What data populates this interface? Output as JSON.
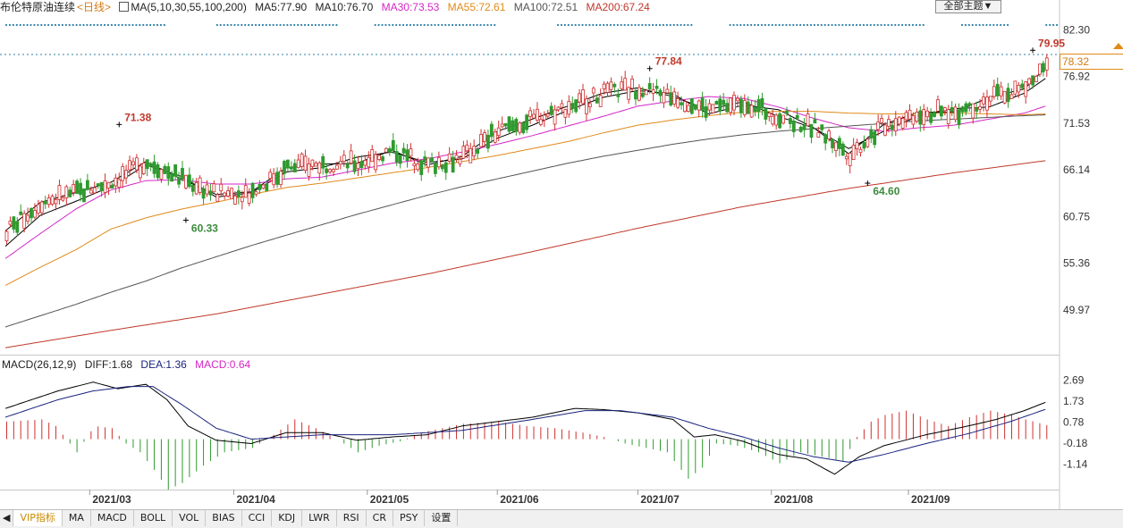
{
  "header": {
    "instrument": "布伦特原油连续",
    "period": "<日线>",
    "ma_label": "MA(5,10,30,55,100,200)",
    "ma5": "MA5:77.90",
    "ma10": "MA10:76.70",
    "ma30": "MA30:73.53",
    "ma55": "MA55:72.61",
    "ma100": "MA100:72.51",
    "ma200": "MA200:67.24",
    "theme_button": "全部主题▼"
  },
  "current_price": "78.32",
  "macd_header": {
    "name": "MACD(26,12,9)",
    "diff": "DIFF:1.68",
    "dea": "DEA:1.36",
    "macd": "MACD:0.64"
  },
  "tabs": [
    "VIP指标",
    "MA",
    "MACD",
    "BOLL",
    "VOL",
    "BIAS",
    "CCI",
    "KDJ",
    "LWR",
    "RSI",
    "CR",
    "PSY",
    "设置"
  ],
  "colors": {
    "up": "#d03030",
    "down": "#2f9a2f",
    "ma5": "#000000",
    "ma10": "#000000",
    "ma30": "#d426c8",
    "ma55": "#e08a1a",
    "ma100": "#555555",
    "ma200": "#c0392b",
    "high_label": "#c0392b",
    "low_label": "#3d8b3d",
    "dea": "#1a237e"
  },
  "chart_data": [
    {
      "type": "candlestick",
      "title": "布伦特原油连续 <日线>",
      "y_ticks": [
        82.3,
        76.92,
        71.53,
        66.14,
        60.75,
        55.36,
        49.97
      ],
      "ylim": [
        44.9,
        83.9
      ],
      "x_ticks": [
        "2021/03",
        "2021/04",
        "2021/05",
        "2021/06",
        "2021/07",
        "2021/08",
        "2021/09"
      ],
      "annotations": [
        {
          "label": "71.38",
          "kind": "high",
          "value": 71.38,
          "date": "2021/03/08"
        },
        {
          "label": "60.33",
          "kind": "low",
          "value": 60.33,
          "date": "2021/03/23"
        },
        {
          "label": "77.84",
          "kind": "high",
          "value": 77.84,
          "date": "2021/07/06"
        },
        {
          "label": "64.60",
          "kind": "low",
          "value": 64.6,
          "date": "2021/08/23"
        },
        {
          "label": "79.95",
          "kind": "high",
          "value": 79.95,
          "date": "2021/09/28"
        }
      ],
      "current_price": 78.32,
      "moving_averages": {
        "MA5": [
          [
            0,
            59.1
          ],
          [
            10,
            62.4
          ],
          [
            20,
            63.5
          ],
          [
            30,
            64.7
          ],
          [
            40,
            67.1
          ],
          [
            50,
            65.1
          ],
          [
            60,
            63.3
          ],
          [
            70,
            63.6
          ],
          [
            80,
            66.4
          ],
          [
            90,
            66.8
          ],
          [
            100,
            66.9
          ],
          [
            110,
            68.4
          ],
          [
            120,
            66.7
          ],
          [
            130,
            67.7
          ],
          [
            140,
            70.6
          ],
          [
            150,
            72.0
          ],
          [
            160,
            73.5
          ],
          [
            170,
            75.0
          ],
          [
            180,
            75.6
          ],
          [
            190,
            74.6
          ],
          [
            200,
            73.1
          ],
          [
            210,
            74.0
          ],
          [
            220,
            72.3
          ],
          [
            230,
            71.0
          ],
          [
            240,
            68.0
          ],
          [
            250,
            71.4
          ],
          [
            260,
            72.8
          ],
          [
            270,
            72.8
          ],
          [
            280,
            74.5
          ],
          [
            290,
            75.5
          ],
          [
            296,
            77.9
          ]
        ],
        "MA10": [
          [
            0,
            57.3
          ],
          [
            10,
            60.9
          ],
          [
            20,
            62.5
          ],
          [
            30,
            64.2
          ],
          [
            40,
            66.7
          ],
          [
            50,
            65.4
          ],
          [
            60,
            63.0
          ],
          [
            70,
            63.5
          ],
          [
            80,
            65.9
          ],
          [
            90,
            66.4
          ],
          [
            100,
            67.6
          ],
          [
            110,
            68.2
          ],
          [
            120,
            67.0
          ],
          [
            130,
            67.4
          ],
          [
            140,
            69.8
          ],
          [
            150,
            71.3
          ],
          [
            160,
            73.0
          ],
          [
            170,
            74.5
          ],
          [
            180,
            75.3
          ],
          [
            190,
            74.9
          ],
          [
            200,
            72.6
          ],
          [
            210,
            73.6
          ],
          [
            220,
            73.1
          ],
          [
            230,
            71.0
          ],
          [
            240,
            68.6
          ],
          [
            250,
            70.6
          ],
          [
            260,
            72.4
          ],
          [
            270,
            73.2
          ],
          [
            280,
            73.4
          ],
          [
            290,
            75.0
          ],
          [
            296,
            76.7
          ]
        ],
        "MA30": [
          [
            0,
            55.9
          ],
          [
            10,
            58.8
          ],
          [
            20,
            61.6
          ],
          [
            30,
            63.8
          ],
          [
            40,
            64.9
          ],
          [
            50,
            65.0
          ],
          [
            60,
            64.5
          ],
          [
            70,
            64.5
          ],
          [
            80,
            65.1
          ],
          [
            90,
            65.3
          ],
          [
            100,
            66.1
          ],
          [
            110,
            66.9
          ],
          [
            120,
            67.4
          ],
          [
            130,
            68.2
          ],
          [
            140,
            69.1
          ],
          [
            150,
            70.1
          ],
          [
            160,
            71.2
          ],
          [
            170,
            72.3
          ],
          [
            180,
            73.5
          ],
          [
            190,
            74.1
          ],
          [
            200,
            74.6
          ],
          [
            210,
            74.4
          ],
          [
            220,
            73.4
          ],
          [
            230,
            72.1
          ],
          [
            240,
            71.0
          ],
          [
            250,
            70.6
          ],
          [
            260,
            71.0
          ],
          [
            270,
            71.3
          ],
          [
            280,
            72.0
          ],
          [
            290,
            72.7
          ],
          [
            296,
            73.5
          ]
        ],
        "MA55": [
          [
            0,
            52.8
          ],
          [
            10,
            54.9
          ],
          [
            20,
            56.9
          ],
          [
            30,
            59.3
          ],
          [
            40,
            60.6
          ],
          [
            50,
            61.6
          ],
          [
            60,
            62.4
          ],
          [
            70,
            63.3
          ],
          [
            80,
            64.1
          ],
          [
            90,
            64.6
          ],
          [
            100,
            65.2
          ],
          [
            110,
            65.8
          ],
          [
            120,
            66.4
          ],
          [
            130,
            67.1
          ],
          [
            140,
            67.8
          ],
          [
            150,
            68.6
          ],
          [
            160,
            69.4
          ],
          [
            170,
            70.4
          ],
          [
            180,
            71.3
          ],
          [
            190,
            71.9
          ],
          [
            200,
            72.4
          ],
          [
            210,
            72.8
          ],
          [
            220,
            72.9
          ],
          [
            230,
            72.9
          ],
          [
            240,
            72.7
          ],
          [
            250,
            72.6
          ],
          [
            260,
            72.6
          ],
          [
            270,
            72.7
          ],
          [
            280,
            72.6
          ],
          [
            290,
            72.5
          ],
          [
            296,
            72.6
          ]
        ],
        "MA100": [
          [
            0,
            48.0
          ],
          [
            10,
            49.3
          ],
          [
            20,
            50.6
          ],
          [
            30,
            52.0
          ],
          [
            40,
            53.3
          ],
          [
            50,
            54.8
          ],
          [
            60,
            56.1
          ],
          [
            70,
            57.4
          ],
          [
            80,
            58.6
          ],
          [
            90,
            59.8
          ],
          [
            100,
            61.0
          ],
          [
            110,
            62.1
          ],
          [
            120,
            63.2
          ],
          [
            130,
            64.2
          ],
          [
            140,
            65.1
          ],
          [
            150,
            66.0
          ],
          [
            160,
            66.9
          ],
          [
            170,
            67.7
          ],
          [
            180,
            68.4
          ],
          [
            190,
            69.1
          ],
          [
            200,
            69.7
          ],
          [
            210,
            70.2
          ],
          [
            220,
            70.6
          ],
          [
            230,
            70.9
          ],
          [
            240,
            71.2
          ],
          [
            250,
            71.5
          ],
          [
            260,
            71.8
          ],
          [
            270,
            72.0
          ],
          [
            280,
            72.2
          ],
          [
            290,
            72.4
          ],
          [
            296,
            72.5
          ]
        ],
        "MA200": [
          [
            0,
            45.6
          ],
          [
            30,
            47.6
          ],
          [
            60,
            49.5
          ],
          [
            90,
            51.8
          ],
          [
            120,
            54.1
          ],
          [
            150,
            56.7
          ],
          [
            180,
            59.4
          ],
          [
            210,
            61.9
          ],
          [
            240,
            64.0
          ],
          [
            270,
            65.8
          ],
          [
            296,
            67.2
          ]
        ]
      }
    },
    {
      "type": "macd",
      "title": "MACD(26,12,9)",
      "y_ticks": [
        2.69,
        1.73,
        0.78,
        -0.18,
        -1.14
      ],
      "ylim": [
        -2.3,
        3.2
      ],
      "series": [
        {
          "name": "DIFF",
          "points": [
            [
              0,
              1.4
            ],
            [
              15,
              2.2
            ],
            [
              25,
              2.6
            ],
            [
              32,
              2.3
            ],
            [
              40,
              2.5
            ],
            [
              46,
              1.8
            ],
            [
              52,
              0.6
            ],
            [
              60,
              -0.05
            ],
            [
              70,
              -0.2
            ],
            [
              80,
              0.3
            ],
            [
              90,
              0.3
            ],
            [
              100,
              -0.05
            ],
            [
              110,
              0.1
            ],
            [
              120,
              0.2
            ],
            [
              130,
              0.6
            ],
            [
              150,
              1.0
            ],
            [
              162,
              1.4
            ],
            [
              170,
              1.35
            ],
            [
              180,
              1.2
            ],
            [
              190,
              0.9
            ],
            [
              196,
              0.1
            ],
            [
              202,
              0.2
            ],
            [
              210,
              -0.1
            ],
            [
              220,
              -0.7
            ],
            [
              228,
              -0.9
            ],
            [
              236,
              -1.6
            ],
            [
              243,
              -0.8
            ],
            [
              250,
              -0.3
            ],
            [
              262,
              0.2
            ],
            [
              274,
              0.6
            ],
            [
              282,
              0.9
            ],
            [
              290,
              1.3
            ],
            [
              296,
              1.68
            ]
          ]
        },
        {
          "name": "DEA",
          "points": [
            [
              0,
              1.0
            ],
            [
              15,
              1.8
            ],
            [
              25,
              2.2
            ],
            [
              35,
              2.4
            ],
            [
              42,
              2.4
            ],
            [
              50,
              1.6
            ],
            [
              60,
              0.5
            ],
            [
              70,
              0.0
            ],
            [
              80,
              0.1
            ],
            [
              90,
              0.2
            ],
            [
              110,
              0.2
            ],
            [
              130,
              0.4
            ],
            [
              150,
              0.9
            ],
            [
              165,
              1.3
            ],
            [
              175,
              1.3
            ],
            [
              190,
              1.0
            ],
            [
              200,
              0.5
            ],
            [
              210,
              0.1
            ],
            [
              220,
              -0.4
            ],
            [
              230,
              -0.8
            ],
            [
              240,
              -1.05
            ],
            [
              250,
              -0.7
            ],
            [
              262,
              -0.2
            ],
            [
              274,
              0.25
            ],
            [
              286,
              0.8
            ],
            [
              296,
              1.36
            ]
          ]
        },
        {
          "name": "MACD",
          "points": [
            [
              0,
              0.8
            ],
            [
              10,
              0.9
            ],
            [
              14,
              0.6
            ],
            [
              18,
              -0.2
            ],
            [
              20,
              -0.6
            ],
            [
              25,
              0.6
            ],
            [
              30,
              0.5
            ],
            [
              34,
              -0.2
            ],
            [
              38,
              -0.6
            ],
            [
              42,
              -1.4
            ],
            [
              46,
              -2.3
            ],
            [
              50,
              -2.0
            ],
            [
              56,
              -1.2
            ],
            [
              62,
              -0.6
            ],
            [
              70,
              -0.4
            ],
            [
              76,
              0.2
            ],
            [
              82,
              0.9
            ],
            [
              88,
              0.5
            ],
            [
              94,
              0.0
            ],
            [
              100,
              -0.6
            ],
            [
              106,
              -0.3
            ],
            [
              112,
              -0.1
            ],
            [
              118,
              0.3
            ],
            [
              130,
              0.7
            ],
            [
              140,
              0.8
            ],
            [
              148,
              0.6
            ],
            [
              156,
              0.5
            ],
            [
              164,
              0.3
            ],
            [
              170,
              0.1
            ],
            [
              176,
              -0.2
            ],
            [
              182,
              -0.4
            ],
            [
              188,
              -0.6
            ],
            [
              194,
              -1.8
            ],
            [
              198,
              -1.3
            ],
            [
              202,
              -0.2
            ],
            [
              208,
              -0.3
            ],
            [
              214,
              -0.6
            ],
            [
              220,
              -1.1
            ],
            [
              226,
              -0.6
            ],
            [
              232,
              -0.8
            ],
            [
              238,
              -1.0
            ],
            [
              242,
              0.1
            ],
            [
              246,
              0.8
            ],
            [
              250,
              1.1
            ],
            [
              256,
              1.3
            ],
            [
              262,
              0.9
            ],
            [
              268,
              0.6
            ],
            [
              274,
              1.0
            ],
            [
              280,
              1.3
            ],
            [
              286,
              1.1
            ],
            [
              290,
              0.9
            ],
            [
              296,
              0.64
            ]
          ]
        }
      ]
    }
  ]
}
